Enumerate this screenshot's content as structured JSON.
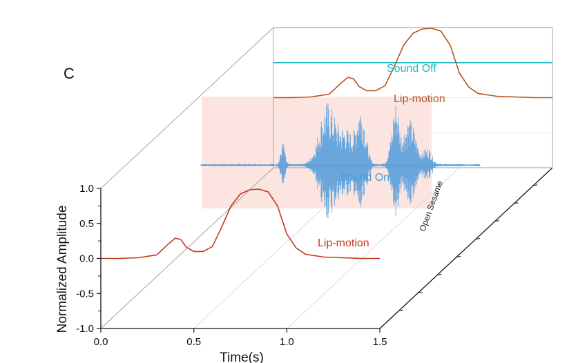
{
  "panel_label": "C",
  "chart_data": {
    "type": "line",
    "title": "",
    "xlabel": "Time(s)",
    "ylabel": "Normalized Amplitude",
    "zlabel": "Open Sesame",
    "xlim": [
      0,
      1.5
    ],
    "ylim": [
      -1.0,
      1.0
    ],
    "x_ticks": [
      "0.0",
      "0.5",
      "1.0",
      "1.5"
    ],
    "y_ticks": [
      "-1.0",
      "-0.5",
      "0.0",
      "0.5",
      "1.0"
    ],
    "grid": true,
    "planes": [
      {
        "name": "front",
        "series": [
          {
            "name": "Lip-motion",
            "color": "#c0391b",
            "x": [
              0.0,
              0.1,
              0.2,
              0.3,
              0.36,
              0.4,
              0.43,
              0.46,
              0.5,
              0.55,
              0.6,
              0.65,
              0.7,
              0.75,
              0.8,
              0.85,
              0.9,
              0.95,
              1.0,
              1.05,
              1.1,
              1.2,
              1.3,
              1.4,
              1.5
            ],
            "y": [
              0.0,
              0.0,
              0.01,
              0.05,
              0.2,
              0.29,
              0.27,
              0.16,
              0.1,
              0.1,
              0.17,
              0.45,
              0.75,
              0.92,
              0.98,
              0.99,
              0.95,
              0.75,
              0.35,
              0.15,
              0.06,
              0.02,
              0.01,
              0.0,
              0.0
            ]
          }
        ]
      },
      {
        "name": "middle",
        "series": [
          {
            "name": "Sound On",
            "color": "#4f9bd9",
            "type": "waveform"
          }
        ]
      },
      {
        "name": "back",
        "series": [
          {
            "name": "Sound Off",
            "color": "#1fb8c1",
            "x": [
              0.0,
              1.5
            ],
            "y": [
              0.5,
              0.5
            ]
          },
          {
            "name": "Lip-motion",
            "color": "#b5531e",
            "x": [
              0.0,
              0.1,
              0.2,
              0.3,
              0.36,
              0.4,
              0.43,
              0.46,
              0.5,
              0.55,
              0.6,
              0.65,
              0.7,
              0.75,
              0.8,
              0.85,
              0.9,
              0.95,
              1.0,
              1.05,
              1.1,
              1.2,
              1.3,
              1.4,
              1.5
            ],
            "y": [
              0.0,
              0.0,
              0.01,
              0.05,
              0.2,
              0.29,
              0.27,
              0.16,
              0.1,
              0.1,
              0.17,
              0.45,
              0.75,
              0.92,
              0.98,
              0.99,
              0.95,
              0.75,
              0.35,
              0.15,
              0.06,
              0.02,
              0.01,
              0.0,
              0.0
            ]
          }
        ]
      }
    ],
    "colors": {
      "highlight_plane": "#fbe0db",
      "grid": "#dddddd",
      "axis": "#111111"
    }
  }
}
